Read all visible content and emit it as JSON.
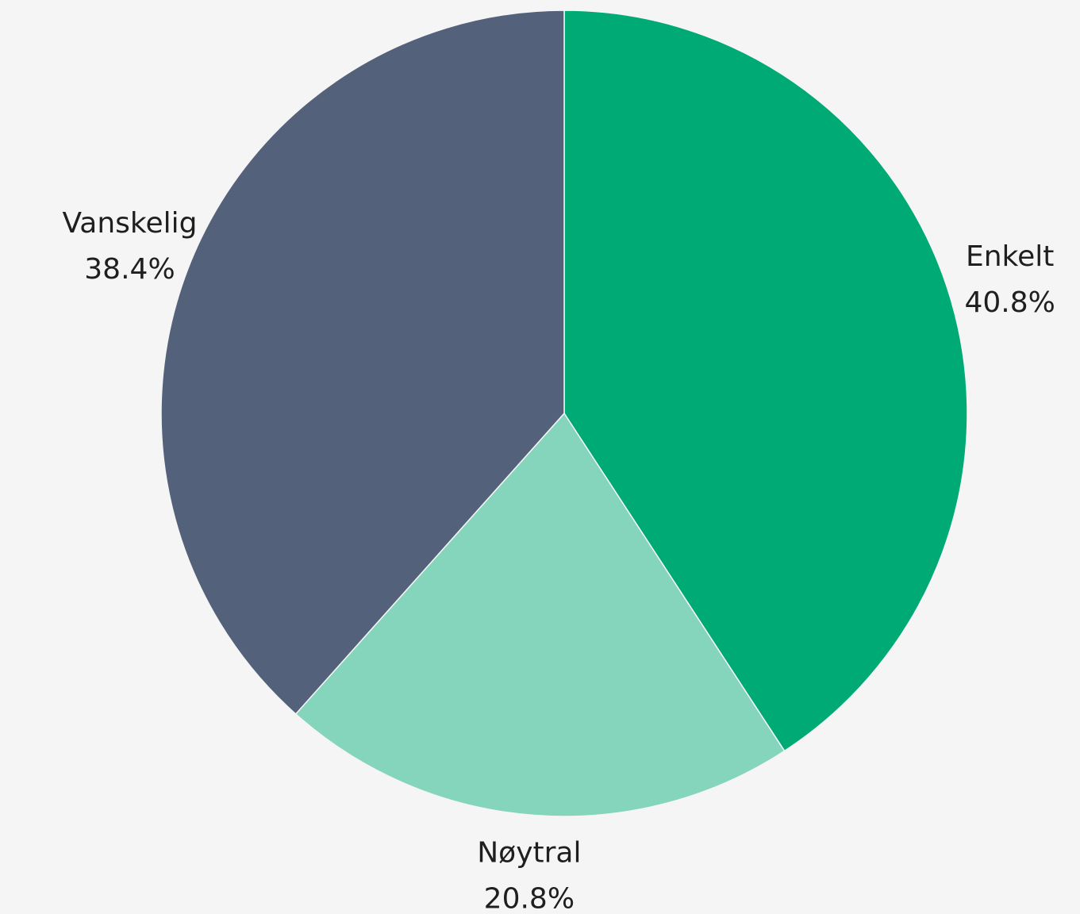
{
  "chart_data": {
    "type": "pie",
    "title": "",
    "start_angle": "12 o'clock",
    "direction": "clockwise",
    "slices": [
      {
        "label": "Enkelt",
        "value": 40.8,
        "value_label": "40.8%",
        "color": "#00aa74"
      },
      {
        "label": "Nøytral",
        "value": 20.8,
        "value_label": "20.8%",
        "color": "#84d5bb"
      },
      {
        "label": "Vanskelig",
        "value": 38.4,
        "value_label": "38.4%",
        "color": "#53617b"
      }
    ],
    "slice_separator_color": "#f5f5f5",
    "background_color": "#f5f5f5"
  }
}
